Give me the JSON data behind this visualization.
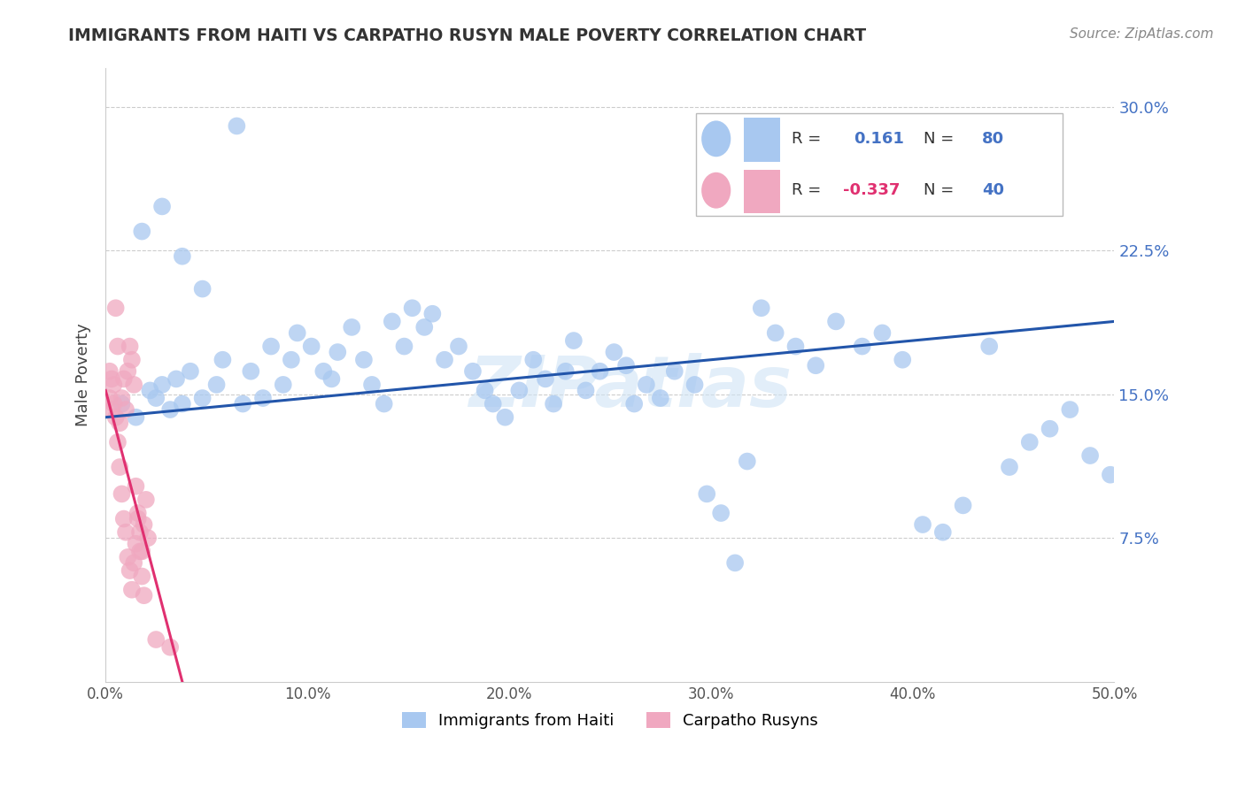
{
  "title": "IMMIGRANTS FROM HAITI VS CARPATHO RUSYN MALE POVERTY CORRELATION CHART",
  "source": "Source: ZipAtlas.com",
  "ylabel": "Male Poverty",
  "watermark": "ZIPatlas",
  "legend_haiti_R": "0.161",
  "legend_haiti_N": "80",
  "legend_rusyn_R": "-0.337",
  "legend_rusyn_N": "40",
  "haiti_color": "#a8c8f0",
  "rusyn_color": "#f0a8c0",
  "haiti_line_color": "#2255aa",
  "rusyn_line_color": "#e03070",
  "xlim": [
    0.0,
    0.5
  ],
  "ylim": [
    0.0,
    0.32
  ],
  "xtick_vals": [
    0.0,
    0.1,
    0.2,
    0.3,
    0.4,
    0.5
  ],
  "xtick_labels": [
    "0.0%",
    "10.0%",
    "20.0%",
    "30.0%",
    "40.0%",
    "50.0%"
  ],
  "ytick_vals": [
    0.075,
    0.15,
    0.225,
    0.3
  ],
  "ytick_labels": [
    "7.5%",
    "15.0%",
    "22.5%",
    "30.0%"
  ],
  "haiti_x": [
    0.008,
    0.015,
    0.022,
    0.025,
    0.028,
    0.032,
    0.035,
    0.038,
    0.042,
    0.048,
    0.055,
    0.058,
    0.065,
    0.068,
    0.072,
    0.078,
    0.082,
    0.088,
    0.092,
    0.095,
    0.102,
    0.108,
    0.112,
    0.115,
    0.122,
    0.128,
    0.132,
    0.138,
    0.142,
    0.148,
    0.152,
    0.158,
    0.162,
    0.168,
    0.175,
    0.182,
    0.188,
    0.192,
    0.198,
    0.205,
    0.212,
    0.218,
    0.222,
    0.228,
    0.232,
    0.238,
    0.245,
    0.252,
    0.258,
    0.262,
    0.268,
    0.275,
    0.282,
    0.292,
    0.298,
    0.305,
    0.312,
    0.318,
    0.325,
    0.332,
    0.342,
    0.352,
    0.362,
    0.375,
    0.385,
    0.395,
    0.405,
    0.415,
    0.425,
    0.438,
    0.448,
    0.458,
    0.468,
    0.478,
    0.488,
    0.498,
    0.018,
    0.028,
    0.038,
    0.048
  ],
  "haiti_y": [
    0.145,
    0.138,
    0.152,
    0.148,
    0.155,
    0.142,
    0.158,
    0.145,
    0.162,
    0.148,
    0.155,
    0.168,
    0.29,
    0.145,
    0.162,
    0.148,
    0.175,
    0.155,
    0.168,
    0.182,
    0.175,
    0.162,
    0.158,
    0.172,
    0.185,
    0.168,
    0.155,
    0.145,
    0.188,
    0.175,
    0.195,
    0.185,
    0.192,
    0.168,
    0.175,
    0.162,
    0.152,
    0.145,
    0.138,
    0.152,
    0.168,
    0.158,
    0.145,
    0.162,
    0.178,
    0.152,
    0.162,
    0.172,
    0.165,
    0.145,
    0.155,
    0.148,
    0.162,
    0.155,
    0.098,
    0.088,
    0.062,
    0.115,
    0.195,
    0.182,
    0.175,
    0.165,
    0.188,
    0.175,
    0.182,
    0.168,
    0.082,
    0.078,
    0.092,
    0.175,
    0.112,
    0.125,
    0.132,
    0.142,
    0.118,
    0.108,
    0.235,
    0.248,
    0.222,
    0.205
  ],
  "rusyn_x": [
    0.002,
    0.003,
    0.004,
    0.005,
    0.006,
    0.007,
    0.008,
    0.009,
    0.01,
    0.011,
    0.012,
    0.013,
    0.014,
    0.015,
    0.016,
    0.017,
    0.018,
    0.019,
    0.02,
    0.021,
    0.002,
    0.003,
    0.004,
    0.005,
    0.006,
    0.007,
    0.008,
    0.009,
    0.01,
    0.011,
    0.012,
    0.013,
    0.014,
    0.015,
    0.016,
    0.017,
    0.018,
    0.019,
    0.025,
    0.032
  ],
  "rusyn_y": [
    0.148,
    0.142,
    0.155,
    0.195,
    0.175,
    0.135,
    0.148,
    0.158,
    0.142,
    0.162,
    0.175,
    0.168,
    0.155,
    0.102,
    0.088,
    0.078,
    0.068,
    0.082,
    0.095,
    0.075,
    0.162,
    0.158,
    0.145,
    0.138,
    0.125,
    0.112,
    0.098,
    0.085,
    0.078,
    0.065,
    0.058,
    0.048,
    0.062,
    0.072,
    0.085,
    0.068,
    0.055,
    0.045,
    0.022,
    0.018
  ],
  "haiti_line_x0": 0.0,
  "haiti_line_x1": 0.5,
  "haiti_line_y0": 0.138,
  "haiti_line_y1": 0.188,
  "rusyn_line_x0": 0.0,
  "rusyn_line_x1": 0.038,
  "rusyn_line_y0": 0.152,
  "rusyn_line_y1": 0.0
}
